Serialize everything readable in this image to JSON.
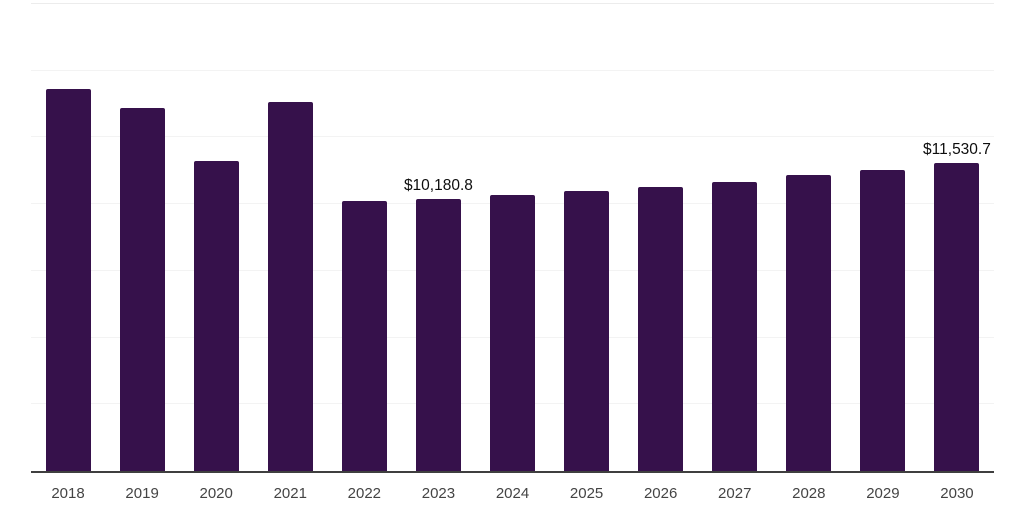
{
  "chart_data": {
    "type": "bar",
    "title": "",
    "xlabel": "",
    "ylabel": "",
    "categories": [
      "2018",
      "2019",
      "2020",
      "2021",
      "2022",
      "2023",
      "2024",
      "2025",
      "2026",
      "2027",
      "2028",
      "2029",
      "2030"
    ],
    "values": [
      14330,
      13600,
      11610,
      13830,
      10100,
      10180.8,
      10340,
      10490,
      10640,
      10830,
      11090,
      11280,
      11530.7
    ],
    "visible_value_labels": [
      {
        "category": "2023",
        "text": "$10,180.8"
      },
      {
        "category": "2030",
        "text": "$11,530.7"
      }
    ],
    "ylim": [
      0,
      17500
    ],
    "gridline_interval": 2500,
    "grid": true,
    "legend": false,
    "y_axis_tick_labels_visible": false
  },
  "colors": {
    "bar": "#36114B",
    "data_label": "#0d0d0d",
    "axis_label": "#444444",
    "gridline": "#f3f3f3",
    "plot_top_border": "#ececec",
    "baseline": "#3f3f3f",
    "background": "#ffffff"
  }
}
